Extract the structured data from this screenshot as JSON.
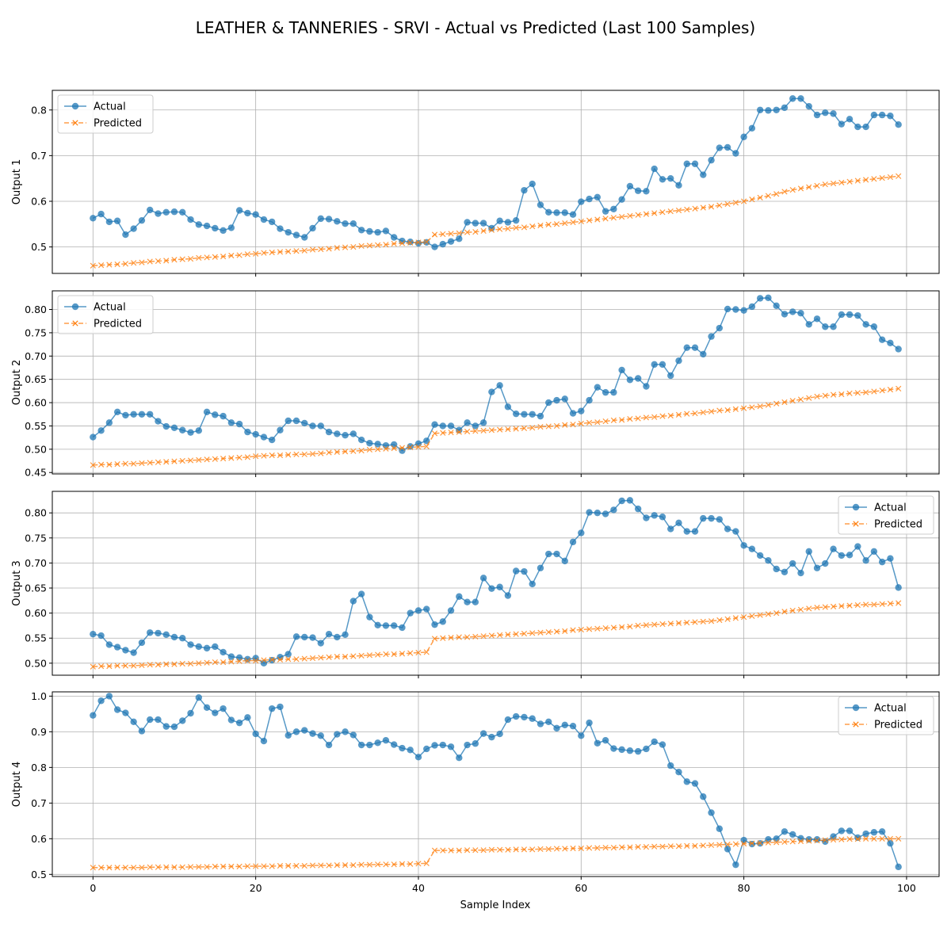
{
  "figure": {
    "title": "LEATHER & TANNERIES - SRVI - Actual vs Predicted (Last 100 Samples)",
    "xlabel": "Sample Index"
  },
  "colors": {
    "actual": "#1f77b4",
    "predicted": "#ff7f0e",
    "grid": "#b0b0b0"
  },
  "chart_data": [
    {
      "type": "line",
      "ylabel": "Output 1",
      "xlim": [
        -5,
        104
      ],
      "ylim": [
        0.442,
        0.843
      ],
      "xticks": [
        0,
        20,
        40,
        60,
        80,
        100
      ],
      "yticks": [
        0.5,
        0.6,
        0.7,
        0.8
      ],
      "ytick_labels": [
        "0.5",
        "0.6",
        "0.7",
        "0.8"
      ],
      "grid": true,
      "legend_placement": "upper-left",
      "x_start": 0,
      "series": [
        {
          "name": "Actual",
          "marker": "circle",
          "values": [
            0.563,
            0.572,
            0.555,
            0.557,
            0.527,
            0.54,
            0.558,
            0.581,
            0.573,
            0.576,
            0.577,
            0.576,
            0.56,
            0.549,
            0.546,
            0.541,
            0.536,
            0.542,
            0.58,
            0.574,
            0.571,
            0.56,
            0.555,
            0.54,
            0.532,
            0.526,
            0.521,
            0.541,
            0.562,
            0.561,
            0.556,
            0.551,
            0.551,
            0.537,
            0.534,
            0.532,
            0.535,
            0.521,
            0.513,
            0.511,
            0.508,
            0.51,
            0.5,
            0.506,
            0.512,
            0.518,
            0.554,
            0.552,
            0.552,
            0.541,
            0.557,
            0.554,
            0.558,
            0.624,
            0.638,
            0.592,
            0.576,
            0.575,
            0.575,
            0.571,
            0.599,
            0.605,
            0.609,
            0.578,
            0.583,
            0.604,
            0.633,
            0.623,
            0.622,
            0.671,
            0.648,
            0.65,
            0.635,
            0.682,
            0.682,
            0.658,
            0.69,
            0.717,
            0.718,
            0.705,
            0.741,
            0.76,
            0.8,
            0.799,
            0.8,
            0.805,
            0.825,
            0.825,
            0.808,
            0.789,
            0.794,
            0.792,
            0.769,
            0.78,
            0.763,
            0.763,
            0.789,
            0.789,
            0.787,
            0.768
          ]
        },
        {
          "name": "Predicted",
          "marker": "x",
          "values": [
            0.459,
            0.46,
            0.461,
            0.462,
            0.463,
            0.465,
            0.466,
            0.468,
            0.469,
            0.47,
            0.472,
            0.473,
            0.474,
            0.476,
            0.477,
            0.478,
            0.479,
            0.481,
            0.482,
            0.484,
            0.485,
            0.487,
            0.488,
            0.489,
            0.49,
            0.491,
            0.492,
            0.494,
            0.495,
            0.496,
            0.498,
            0.499,
            0.5,
            0.502,
            0.503,
            0.504,
            0.505,
            0.507,
            0.508,
            0.509,
            0.51,
            0.511,
            0.527,
            0.528,
            0.529,
            0.53,
            0.532,
            0.533,
            0.535,
            0.537,
            0.539,
            0.54,
            0.542,
            0.543,
            0.545,
            0.547,
            0.549,
            0.55,
            0.552,
            0.554,
            0.556,
            0.558,
            0.56,
            0.562,
            0.564,
            0.566,
            0.568,
            0.57,
            0.572,
            0.574,
            0.576,
            0.578,
            0.58,
            0.582,
            0.584,
            0.586,
            0.588,
            0.591,
            0.594,
            0.597,
            0.6,
            0.604,
            0.608,
            0.612,
            0.616,
            0.621,
            0.625,
            0.628,
            0.631,
            0.634,
            0.637,
            0.639,
            0.641,
            0.643,
            0.645,
            0.647,
            0.649,
            0.651,
            0.653,
            0.655
          ]
        }
      ]
    },
    {
      "type": "line",
      "ylabel": "Output 2",
      "xlim": [
        -5,
        104
      ],
      "ylim": [
        0.447,
        0.84
      ],
      "xticks": [
        0,
        20,
        40,
        60,
        80,
        100
      ],
      "yticks": [
        0.45,
        0.5,
        0.55,
        0.6,
        0.65,
        0.7,
        0.75,
        0.8
      ],
      "ytick_labels": [
        "0.45",
        "0.50",
        "0.55",
        "0.60",
        "0.65",
        "0.70",
        "0.75",
        "0.80"
      ],
      "grid": true,
      "legend_placement": "upper-left",
      "x_start": 0,
      "series": [
        {
          "name": "Actual",
          "marker": "circle",
          "values": [
            0.526,
            0.54,
            0.557,
            0.58,
            0.573,
            0.575,
            0.575,
            0.575,
            0.56,
            0.549,
            0.546,
            0.541,
            0.536,
            0.54,
            0.58,
            0.574,
            0.571,
            0.557,
            0.554,
            0.537,
            0.532,
            0.526,
            0.52,
            0.541,
            0.561,
            0.561,
            0.556,
            0.55,
            0.55,
            0.537,
            0.533,
            0.53,
            0.533,
            0.52,
            0.513,
            0.511,
            0.508,
            0.51,
            0.497,
            0.506,
            0.512,
            0.518,
            0.553,
            0.55,
            0.55,
            0.541,
            0.557,
            0.55,
            0.557,
            0.623,
            0.637,
            0.591,
            0.576,
            0.575,
            0.575,
            0.571,
            0.6,
            0.605,
            0.608,
            0.577,
            0.582,
            0.605,
            0.633,
            0.622,
            0.622,
            0.67,
            0.649,
            0.652,
            0.635,
            0.682,
            0.682,
            0.658,
            0.69,
            0.718,
            0.718,
            0.704,
            0.742,
            0.76,
            0.801,
            0.8,
            0.798,
            0.806,
            0.824,
            0.825,
            0.808,
            0.79,
            0.795,
            0.792,
            0.768,
            0.78,
            0.763,
            0.763,
            0.789,
            0.789,
            0.787,
            0.768,
            0.763,
            0.735,
            0.728,
            0.715
          ]
        },
        {
          "name": "Predicted",
          "marker": "x",
          "values": [
            0.466,
            0.467,
            0.467,
            0.468,
            0.469,
            0.469,
            0.47,
            0.471,
            0.472,
            0.473,
            0.474,
            0.475,
            0.476,
            0.477,
            0.478,
            0.479,
            0.48,
            0.481,
            0.482,
            0.483,
            0.485,
            0.486,
            0.487,
            0.487,
            0.488,
            0.489,
            0.489,
            0.49,
            0.491,
            0.493,
            0.494,
            0.495,
            0.496,
            0.497,
            0.499,
            0.5,
            0.501,
            0.502,
            0.503,
            0.504,
            0.505,
            0.506,
            0.534,
            0.535,
            0.536,
            0.537,
            0.538,
            0.539,
            0.54,
            0.541,
            0.542,
            0.543,
            0.544,
            0.545,
            0.546,
            0.548,
            0.549,
            0.55,
            0.552,
            0.553,
            0.555,
            0.557,
            0.558,
            0.56,
            0.562,
            0.563,
            0.565,
            0.566,
            0.568,
            0.569,
            0.571,
            0.572,
            0.574,
            0.576,
            0.577,
            0.579,
            0.581,
            0.583,
            0.584,
            0.586,
            0.588,
            0.59,
            0.592,
            0.595,
            0.598,
            0.601,
            0.604,
            0.607,
            0.61,
            0.613,
            0.615,
            0.617,
            0.618,
            0.62,
            0.621,
            0.622,
            0.624,
            0.626,
            0.628,
            0.63
          ]
        }
      ]
    },
    {
      "type": "line",
      "ylabel": "Output 3",
      "xlim": [
        -5,
        104
      ],
      "ylim": [
        0.476,
        0.843
      ],
      "xticks": [
        0,
        20,
        40,
        60,
        80,
        100
      ],
      "yticks": [
        0.5,
        0.55,
        0.6,
        0.65,
        0.7,
        0.75,
        0.8
      ],
      "ytick_labels": [
        "0.50",
        "0.55",
        "0.60",
        "0.65",
        "0.70",
        "0.75",
        "0.80"
      ],
      "grid": true,
      "legend_placement": "upper-right",
      "x_start": 0,
      "series": [
        {
          "name": "Actual",
          "marker": "circle",
          "values": [
            0.558,
            0.555,
            0.537,
            0.532,
            0.526,
            0.521,
            0.541,
            0.561,
            0.56,
            0.557,
            0.552,
            0.55,
            0.537,
            0.533,
            0.53,
            0.533,
            0.522,
            0.513,
            0.511,
            0.508,
            0.51,
            0.5,
            0.506,
            0.512,
            0.518,
            0.553,
            0.552,
            0.551,
            0.54,
            0.558,
            0.552,
            0.557,
            0.624,
            0.638,
            0.592,
            0.576,
            0.575,
            0.575,
            0.571,
            0.6,
            0.605,
            0.608,
            0.577,
            0.583,
            0.605,
            0.633,
            0.622,
            0.622,
            0.67,
            0.649,
            0.652,
            0.635,
            0.684,
            0.683,
            0.658,
            0.69,
            0.718,
            0.718,
            0.704,
            0.742,
            0.76,
            0.801,
            0.8,
            0.798,
            0.806,
            0.824,
            0.825,
            0.808,
            0.79,
            0.795,
            0.792,
            0.768,
            0.78,
            0.763,
            0.763,
            0.789,
            0.789,
            0.787,
            0.768,
            0.763,
            0.735,
            0.728,
            0.715,
            0.705,
            0.688,
            0.682,
            0.699,
            0.68,
            0.723,
            0.69,
            0.699,
            0.728,
            0.715,
            0.716,
            0.733,
            0.705,
            0.723,
            0.702,
            0.709,
            0.651
          ]
        },
        {
          "name": "Predicted",
          "marker": "x",
          "values": [
            0.493,
            0.494,
            0.494,
            0.495,
            0.495,
            0.495,
            0.496,
            0.497,
            0.497,
            0.498,
            0.498,
            0.499,
            0.499,
            0.5,
            0.501,
            0.502,
            0.502,
            0.503,
            0.504,
            0.505,
            0.505,
            0.506,
            0.507,
            0.507,
            0.508,
            0.508,
            0.509,
            0.51,
            0.511,
            0.512,
            0.513,
            0.513,
            0.514,
            0.515,
            0.516,
            0.517,
            0.518,
            0.518,
            0.519,
            0.52,
            0.521,
            0.522,
            0.549,
            0.55,
            0.551,
            0.552,
            0.552,
            0.553,
            0.554,
            0.555,
            0.556,
            0.557,
            0.558,
            0.559,
            0.56,
            0.561,
            0.562,
            0.563,
            0.564,
            0.566,
            0.567,
            0.568,
            0.569,
            0.57,
            0.571,
            0.572,
            0.573,
            0.575,
            0.576,
            0.577,
            0.578,
            0.579,
            0.58,
            0.581,
            0.582,
            0.583,
            0.584,
            0.586,
            0.588,
            0.59,
            0.592,
            0.594,
            0.596,
            0.598,
            0.6,
            0.603,
            0.605,
            0.607,
            0.609,
            0.611,
            0.612,
            0.613,
            0.614,
            0.615,
            0.616,
            0.617,
            0.617,
            0.618,
            0.619,
            0.62
          ]
        }
      ]
    },
    {
      "type": "line",
      "ylabel": "Output 4",
      "xlim": [
        -5,
        104
      ],
      "ylim": [
        0.494,
        1.012
      ],
      "xticks": [
        0,
        20,
        40,
        60,
        80,
        100
      ],
      "xtick_labels": [
        "0",
        "20",
        "40",
        "60",
        "80",
        "100"
      ],
      "yticks": [
        0.5,
        0.6,
        0.7,
        0.8,
        0.9,
        1.0
      ],
      "ytick_labels": [
        "0.5",
        "0.6",
        "0.7",
        "0.8",
        "0.9",
        "1.0"
      ],
      "grid": true,
      "legend_placement": "upper-right",
      "x_start": 0,
      "series": [
        {
          "name": "Actual",
          "marker": "circle",
          "values": [
            0.946,
            0.987,
            1.0,
            0.962,
            0.953,
            0.928,
            0.902,
            0.934,
            0.934,
            0.915,
            0.914,
            0.931,
            0.952,
            0.996,
            0.968,
            0.953,
            0.965,
            0.933,
            0.925,
            0.94,
            0.894,
            0.874,
            0.965,
            0.97,
            0.89,
            0.9,
            0.904,
            0.895,
            0.889,
            0.863,
            0.893,
            0.9,
            0.891,
            0.863,
            0.863,
            0.869,
            0.876,
            0.864,
            0.854,
            0.849,
            0.829,
            0.852,
            0.862,
            0.863,
            0.858,
            0.827,
            0.863,
            0.867,
            0.895,
            0.885,
            0.894,
            0.934,
            0.943,
            0.941,
            0.937,
            0.922,
            0.928,
            0.91,
            0.919,
            0.916,
            0.889,
            0.925,
            0.868,
            0.876,
            0.853,
            0.85,
            0.847,
            0.845,
            0.852,
            0.872,
            0.864,
            0.805,
            0.787,
            0.76,
            0.755,
            0.718,
            0.673,
            0.628,
            0.571,
            0.527,
            0.596,
            0.585,
            0.587,
            0.598,
            0.6,
            0.62,
            0.612,
            0.601,
            0.598,
            0.598,
            0.592,
            0.606,
            0.622,
            0.622,
            0.603,
            0.614,
            0.618,
            0.62,
            0.587,
            0.521
          ]
        },
        {
          "name": "Predicted",
          "marker": "x",
          "values": [
            0.519,
            0.519,
            0.519,
            0.519,
            0.519,
            0.519,
            0.519,
            0.52,
            0.52,
            0.52,
            0.52,
            0.52,
            0.521,
            0.521,
            0.521,
            0.522,
            0.522,
            0.522,
            0.522,
            0.523,
            0.523,
            0.523,
            0.523,
            0.524,
            0.524,
            0.524,
            0.524,
            0.525,
            0.525,
            0.525,
            0.526,
            0.526,
            0.526,
            0.527,
            0.527,
            0.528,
            0.528,
            0.528,
            0.529,
            0.529,
            0.53,
            0.531,
            0.567,
            0.567,
            0.567,
            0.567,
            0.568,
            0.568,
            0.568,
            0.569,
            0.569,
            0.569,
            0.57,
            0.57,
            0.57,
            0.571,
            0.571,
            0.572,
            0.572,
            0.573,
            0.573,
            0.574,
            0.574,
            0.575,
            0.575,
            0.576,
            0.576,
            0.577,
            0.577,
            0.578,
            0.578,
            0.579,
            0.579,
            0.58,
            0.58,
            0.581,
            0.582,
            0.583,
            0.584,
            0.585,
            0.586,
            0.587,
            0.588,
            0.589,
            0.59,
            0.591,
            0.592,
            0.593,
            0.594,
            0.595,
            0.596,
            0.597,
            0.598,
            0.599,
            0.599,
            0.6,
            0.6,
            0.6,
            0.6,
            0.6
          ]
        }
      ]
    }
  ]
}
